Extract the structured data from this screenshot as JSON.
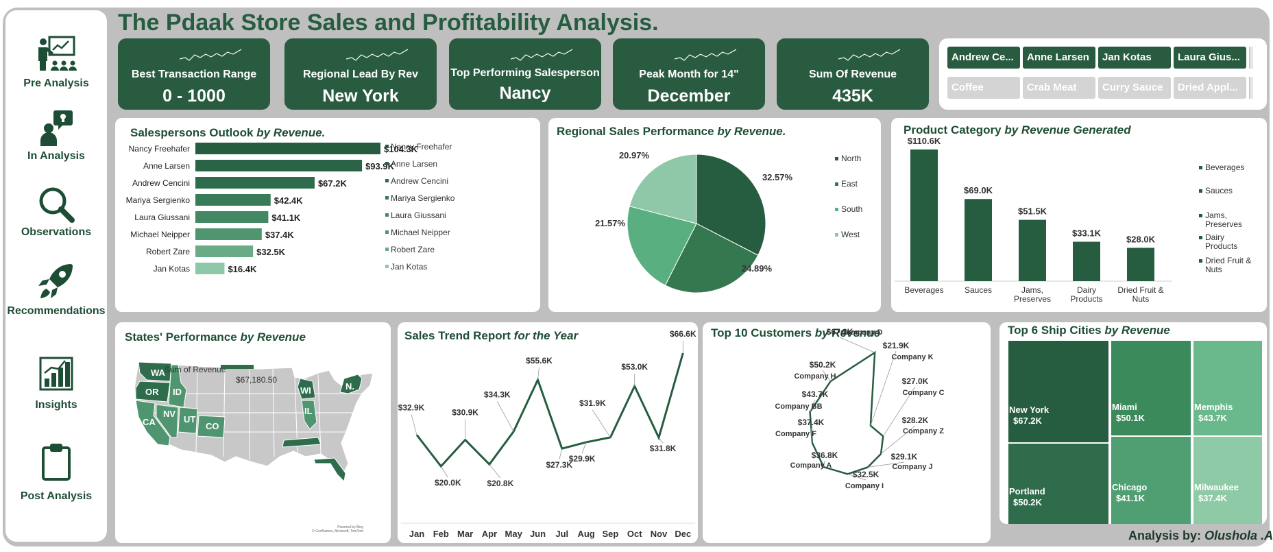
{
  "title": "The Pdaak Store Sales and Profitability Analysis.",
  "nav": [
    {
      "label": "Pre Analysis",
      "icon": "presentation-icon"
    },
    {
      "label": "In Analysis",
      "icon": "idea-person-icon"
    },
    {
      "label": "Observations",
      "icon": "magnifier-icon"
    },
    {
      "label": "Recommendations",
      "icon": "rocket-icon"
    },
    {
      "label": "Insights",
      "icon": "bar-chart-icon"
    },
    {
      "label": "Post Analysis",
      "icon": "clipboard-icon"
    }
  ],
  "kpis": [
    {
      "label": "Best Transaction Range",
      "value": "0 - 1000"
    },
    {
      "label": "Regional Lead By Rev",
      "value": "New York"
    },
    {
      "label": "Top Performing Salesperson",
      "value": "Nancy"
    },
    {
      "label": "Peak Month for 14\"",
      "value": "December"
    },
    {
      "label": "Sum Of Revenue",
      "value": "435K"
    }
  ],
  "slicers": {
    "salespersons": [
      "Andrew Ce...",
      "Anne Larsen",
      "Jan Kotas",
      "Laura Gius..."
    ],
    "products": [
      "Coffee",
      "Crab Meat",
      "Curry Sauce",
      "Dried Appl..."
    ]
  },
  "colors": {
    "dark": "#285b40",
    "accent": "#2e6b4a"
  },
  "chart_data": [
    {
      "id": "salespersons",
      "type": "bar",
      "orientation": "horizontal",
      "title": "Salespersons Outlook",
      "title_suffix": "by Revenue.",
      "categories": [
        "Nancy Freehafer",
        "Anne Larsen",
        "Andrew Cencini",
        "Mariya Sergienko",
        "Laura Giussani",
        "Michael Neipper",
        "Robert Zare",
        "Jan Kotas"
      ],
      "values": [
        104.3,
        93.9,
        67.2,
        42.4,
        41.1,
        37.4,
        32.5,
        16.4
      ],
      "labels": [
        "$104.3K",
        "$93.9K",
        "$67.2K",
        "$42.4K",
        "$41.1K",
        "$37.4K",
        "$32.5K",
        "$16.4K"
      ],
      "colors": [
        "#265c3f",
        "#2b6346",
        "#2f6c4c",
        "#3a7b57",
        "#448863",
        "#4f9670",
        "#6aaa86",
        "#8fc8a8"
      ],
      "legend": "right"
    },
    {
      "id": "regional",
      "type": "pie",
      "title": "Regional Sales Performance",
      "title_suffix": "by Revenue.",
      "categories": [
        "North",
        "East",
        "South",
        "West"
      ],
      "values": [
        32.57,
        24.89,
        21.57,
        20.97
      ],
      "labels": [
        "32.57%",
        "24.89%",
        "21.57%",
        "20.97%"
      ],
      "colors": [
        "#265c3f",
        "#357850",
        "#5aaf80",
        "#8fc8a8"
      ],
      "legend": "right"
    },
    {
      "id": "product_category",
      "type": "bar",
      "title": "Product Category",
      "title_suffix": "by Revenue Generated",
      "categories": [
        "Beverages",
        "Sauces",
        "Jams, Preserves",
        "Dairy Products",
        "Dried Fruit & Nuts"
      ],
      "values": [
        110.6,
        69.0,
        51.5,
        33.1,
        28.0
      ],
      "labels": [
        "$110.6K",
        "$69.0K",
        "$51.5K",
        "$33.1K",
        "$28.0K"
      ],
      "colors": [
        "#265c3f",
        "#265c3f",
        "#265c3f",
        "#265c3f",
        "#265c3f"
      ],
      "legend": "right"
    },
    {
      "id": "states",
      "type": "map",
      "title": "States' Performance",
      "title_suffix": "by Revenue",
      "legend_title": "Sum of Revenue",
      "legend_max": "$67,180.50",
      "highlighted_states": [
        "WA",
        "OR",
        "ID",
        "CA",
        "NV",
        "UT",
        "CO",
        "WI",
        "IL",
        "N."
      ],
      "attribution": "Powered by Bing",
      "attribution2": "© GeoNames, Microsoft, TomTom"
    },
    {
      "id": "sales_trend",
      "type": "line",
      "title": "Sales Trend Report",
      "title_suffix": "for the Year",
      "categories": [
        "Jan",
        "Feb",
        "Mar",
        "Apr",
        "May",
        "Jun",
        "Jul",
        "Aug",
        "Sep",
        "Oct",
        "Nov",
        "Dec"
      ],
      "values": [
        32.9,
        20.0,
        30.9,
        20.8,
        34.3,
        55.6,
        27.3,
        29.9,
        31.9,
        53.0,
        31.8,
        66.6
      ],
      "labels": [
        "$32.9K",
        "$20.0K",
        "$30.9K",
        "$20.8K",
        "$34.3K",
        "$55.6K",
        "$27.3K",
        "$29.9K",
        "$31.9K",
        "$53.0K",
        "$31.8K",
        "$66.6K"
      ]
    },
    {
      "id": "top_customers",
      "type": "radar",
      "title": "Top 10 Customers",
      "title_suffix": "by Revenue",
      "categories": [
        "Company D",
        "Company K",
        "Company C",
        "Company Z",
        "Company J",
        "Company I",
        "Company A",
        "Company F",
        "Company BB",
        "Company H"
      ],
      "values": [
        67.2,
        21.9,
        27.0,
        28.2,
        29.1,
        32.5,
        36.8,
        37.4,
        43.7,
        50.2
      ],
      "labels": [
        "$67.2K",
        "$21.9K",
        "$27.0K",
        "$28.2K",
        "$29.1K",
        "$32.5K",
        "$36.8K",
        "$37.4K",
        "$43.7K",
        "$50.2K"
      ]
    },
    {
      "id": "ship_cities",
      "type": "treemap",
      "title": "Top 6 Ship Cities",
      "title_suffix": "by Revenue",
      "categories": [
        "New York",
        "Portland",
        "Miami",
        "Chicago",
        "Memphis",
        "Milwaukee"
      ],
      "values": [
        67.2,
        50.2,
        50.1,
        41.1,
        43.7,
        37.4
      ],
      "labels": [
        "$67.2K",
        "$50.2K",
        "$50.1K",
        "$41.1K",
        "$43.7K",
        "$37.4K"
      ],
      "colors": [
        "#265c3f",
        "#2f6c4c",
        "#3a8a5c",
        "#4f9f72",
        "#6ab98c",
        "#8fcaa6"
      ]
    }
  ],
  "credit": {
    "label": "Analysis by:",
    "author": "Olushola .A"
  }
}
